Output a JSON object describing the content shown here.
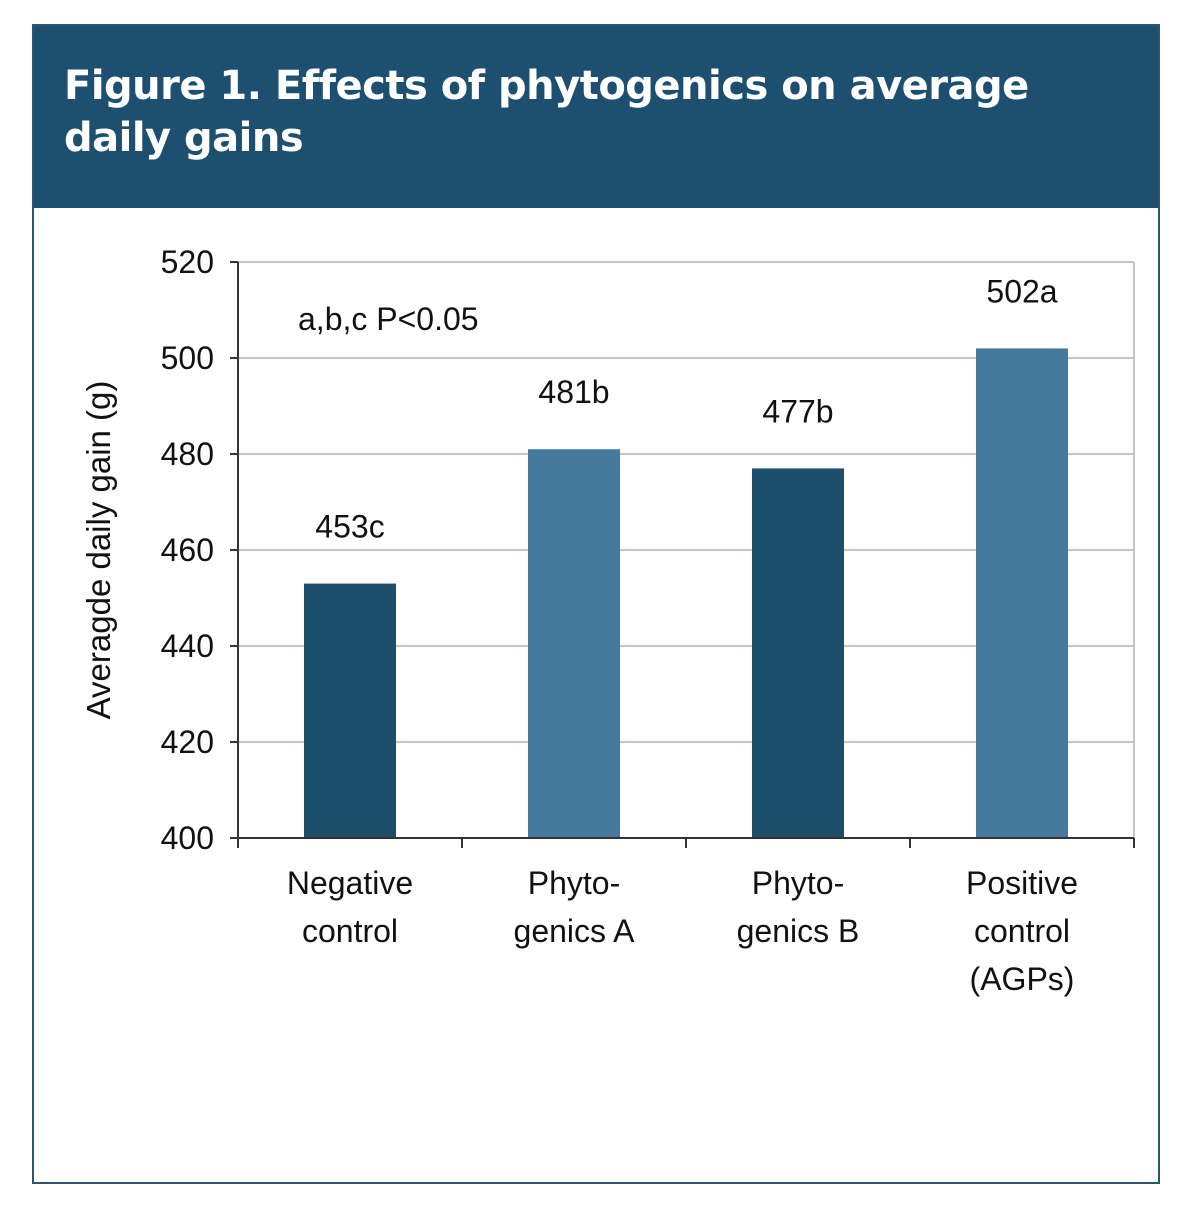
{
  "header": {
    "title_line1": "Figure 1.  Effects of phytogenics on average",
    "title_line2": "daily gains"
  },
  "chart_data": {
    "type": "bar",
    "categories": [
      [
        "Negative",
        "control"
      ],
      [
        "Phyto-",
        "genics A"
      ],
      [
        "Phyto-",
        "genics B"
      ],
      [
        "Positive",
        "control",
        "(AGPs)"
      ]
    ],
    "values": [
      453,
      481,
      477,
      502
    ],
    "data_labels": [
      "453c",
      "481b",
      "477b",
      "502a"
    ],
    "bar_colors": [
      "#1d4f6b",
      "#467a9c",
      "#1d4f6b",
      "#467a9c"
    ],
    "ylabel": "Averagde daily gain (g)",
    "ylim": [
      400,
      520
    ],
    "yticks": [
      400,
      420,
      440,
      460,
      480,
      500,
      520
    ],
    "annotation": "a,b,c  P<0.05",
    "grid": true
  }
}
